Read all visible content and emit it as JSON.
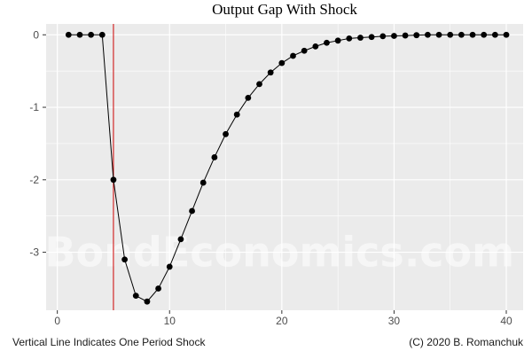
{
  "chart_data": {
    "type": "line",
    "title": "Output Gap With Shock",
    "xlabel": "",
    "ylabel": "",
    "xlim": [
      -1,
      41.5
    ],
    "ylim": [
      -3.8,
      0.15
    ],
    "x_ticks": [
      0,
      10,
      20,
      30,
      40
    ],
    "y_ticks": [
      0,
      -1,
      -2,
      -3
    ],
    "y_tick_labels": [
      "0",
      "-1",
      "-2",
      "-3"
    ],
    "grid": true,
    "legend": "none",
    "vline": {
      "x": 5,
      "color": "#cc0000"
    },
    "caption_left": "Vertical Line Indicates One Period Shock",
    "caption_right": "(C) 2020 B. Romanchuk",
    "watermark": "BondEconomics.com",
    "series": [
      {
        "color": "#000000",
        "x": [
          1,
          2,
          3,
          4,
          5,
          6,
          7,
          8,
          9,
          10,
          11,
          12,
          13,
          14,
          15,
          16,
          17,
          18,
          19,
          20,
          21,
          22,
          23,
          24,
          25,
          26,
          27,
          28,
          29,
          30,
          31,
          32,
          33,
          34,
          35,
          36,
          37,
          38,
          39,
          40
        ],
        "y": [
          0,
          0,
          0,
          0,
          -2.0,
          -3.1,
          -3.6,
          -3.68,
          -3.5,
          -3.2,
          -2.82,
          -2.43,
          -2.04,
          -1.69,
          -1.37,
          -1.1,
          -0.87,
          -0.68,
          -0.52,
          -0.39,
          -0.29,
          -0.22,
          -0.16,
          -0.11,
          -0.08,
          -0.05,
          -0.04,
          -0.03,
          -0.02,
          -0.015,
          -0.01,
          -0.005,
          0,
          0,
          0,
          0,
          0,
          0,
          0,
          0
        ]
      }
    ]
  },
  "colors": {
    "panel_bg": "#ebebeb",
    "grid_major": "#ffffff",
    "tick_color": "#333333"
  }
}
